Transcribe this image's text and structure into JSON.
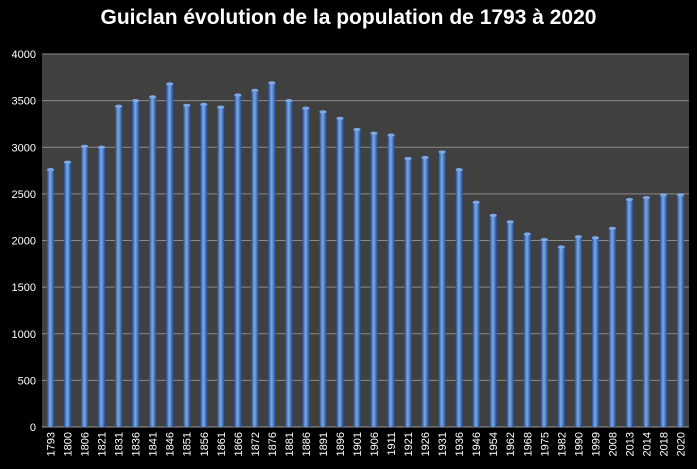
{
  "chart_data": {
    "type": "bar",
    "title": "Guiclan évolution de la population de 1793 à 2020",
    "xlabel": "",
    "ylabel": "",
    "ylim": [
      0,
      4000
    ],
    "yticks": [
      0,
      500,
      1000,
      1500,
      2000,
      2500,
      3000,
      3500,
      4000
    ],
    "grid": true,
    "legend": "none",
    "categories": [
      "1793",
      "1800",
      "1806",
      "1821",
      "1831",
      "1836",
      "1841",
      "1846",
      "1851",
      "1856",
      "1861",
      "1866",
      "1872",
      "1876",
      "1881",
      "1886",
      "1891",
      "1896",
      "1901",
      "1906",
      "1911",
      "1921",
      "1926",
      "1931",
      "1936",
      "1946",
      "1954",
      "1962",
      "1968",
      "1975",
      "1982",
      "1990",
      "1999",
      "2008",
      "2013",
      "2014",
      "2018",
      "2020"
    ],
    "series": [
      {
        "values": [
          2760,
          2840,
          3010,
          3000,
          3440,
          3500,
          3540,
          3680,
          3450,
          3460,
          3430,
          3560,
          3610,
          3690,
          3500,
          3420,
          3380,
          3310,
          3190,
          3150,
          3130,
          2880,
          2890,
          2950,
          2760,
          2410,
          2270,
          2200,
          2070,
          2010,
          1930,
          2040,
          2030,
          2130,
          2440,
          2460,
          2490,
          2490
        ]
      }
    ],
    "colors": {
      "background": "#000000",
      "plot_area": "#404040",
      "gridline": "#8a8a8a",
      "bar_dark": "#1f4e96",
      "bar_mid": "#3f78cc",
      "bar_light": "#7fa8e6",
      "text": "#ffffff"
    }
  }
}
